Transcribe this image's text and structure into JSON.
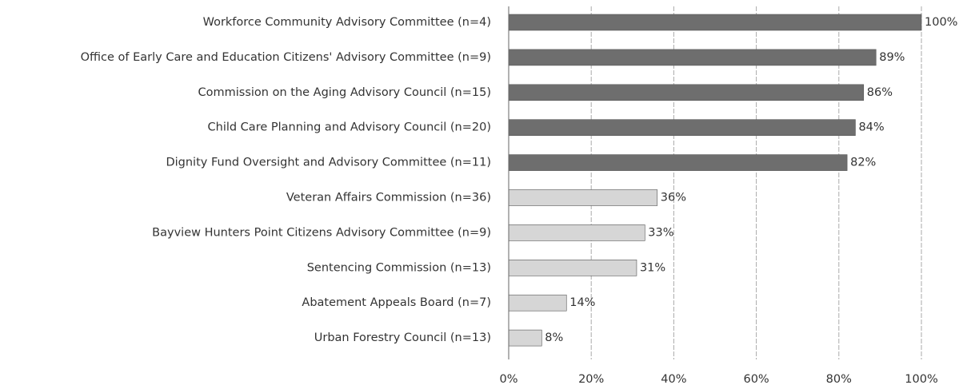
{
  "chart_data": {
    "type": "barh",
    "categories": [
      "Workforce Community Advisory Committee (n=4)",
      "Office of Early Care and Education Citizens' Advisory Committee (n=9)",
      "Commission on the Aging Advisory Council (n=15)",
      "Child Care Planning and Advisory Council (n=20)",
      "Dignity Fund Oversight and Advisory Committee (n=11)",
      "Veteran Affairs Commission (n=36)",
      "Bayview Hunters Point Citizens Advisory Committee (n=9)",
      "Sentencing Commission (n=13)",
      "Abatement Appeals Board (n=7)",
      "Urban Forestry Council (n=13)"
    ],
    "values": [
      100,
      89,
      86,
      84,
      82,
      36,
      33,
      31,
      14,
      8
    ],
    "value_labels": [
      "100%",
      "89%",
      "86%",
      "84%",
      "82%",
      "36%",
      "33%",
      "31%",
      "14%",
      "8%"
    ],
    "colors": [
      "#6e6e6e",
      "#6e6e6e",
      "#6e6e6e",
      "#6e6e6e",
      "#6e6e6e",
      "#d6d6d6",
      "#d6d6d6",
      "#d6d6d6",
      "#d6d6d6",
      "#d6d6d6"
    ],
    "xlim": [
      0,
      100
    ],
    "xticks": [
      {
        "value": 0,
        "label": "0%"
      },
      {
        "value": 20,
        "label": "20%"
      },
      {
        "value": 40,
        "label": "40%"
      },
      {
        "value": 60,
        "label": "60%"
      },
      {
        "value": 80,
        "label": "80%"
      },
      {
        "value": 100,
        "label": "100%"
      }
    ],
    "grid": true
  }
}
